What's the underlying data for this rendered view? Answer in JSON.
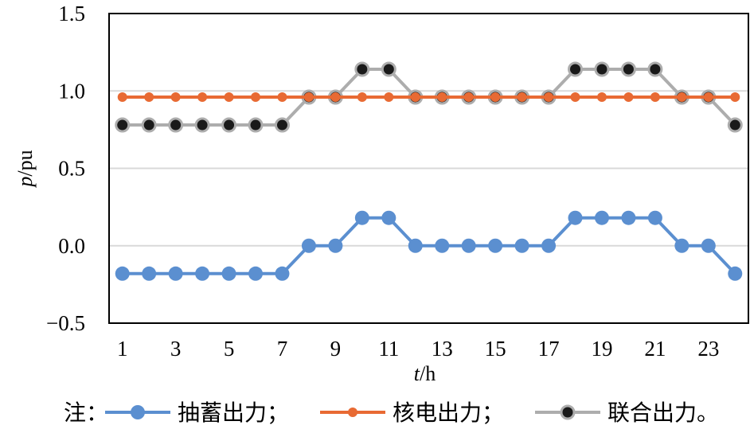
{
  "chart_data": {
    "type": "line",
    "xlabel_italic": "t",
    "xlabel_rest": "/h",
    "ylabel_italic": "p",
    "ylabel_rest": "/pu",
    "ylim": [
      -0.5,
      1.5
    ],
    "yticks": [
      "-0.5",
      "0.0",
      "0.5",
      "1.0",
      "1.5"
    ],
    "ytick_values": [
      -0.5,
      0,
      0.5,
      1,
      1.5
    ],
    "x": [
      1,
      2,
      3,
      4,
      5,
      6,
      7,
      8,
      9,
      10,
      11,
      12,
      13,
      14,
      15,
      16,
      17,
      18,
      19,
      20,
      21,
      22,
      23,
      24
    ],
    "xtick_labels": [
      "1",
      "3",
      "5",
      "7",
      "9",
      "11",
      "13",
      "15",
      "17",
      "19",
      "21",
      "23"
    ],
    "xtick_values": [
      1,
      3,
      5,
      7,
      9,
      11,
      13,
      15,
      17,
      19,
      21,
      23
    ],
    "grid": true,
    "legend_placement": "bottom",
    "legend_prefix": "注：",
    "series": [
      {
        "name": "抽蓄出力；",
        "color": "#5B8FD0",
        "marker": "#5B8FD0",
        "values": [
          -0.18,
          -0.18,
          -0.18,
          -0.18,
          -0.18,
          -0.18,
          -0.18,
          0,
          0,
          0.18,
          0.18,
          0,
          0,
          0,
          0,
          0,
          0,
          0.18,
          0.18,
          0.18,
          0.18,
          0,
          0,
          -0.18
        ]
      },
      {
        "name": "核电出力；",
        "color": "#E86A33",
        "marker": "#E86A33",
        "values": [
          0.96,
          0.96,
          0.96,
          0.96,
          0.96,
          0.96,
          0.96,
          0.96,
          0.96,
          0.96,
          0.96,
          0.96,
          0.96,
          0.96,
          0.96,
          0.96,
          0.96,
          0.96,
          0.96,
          0.96,
          0.96,
          0.96,
          0.96,
          0.96
        ]
      },
      {
        "name": "联合出力。",
        "color": "#ADADAD",
        "marker": "#1A1A1A",
        "values": [
          0.78,
          0.78,
          0.78,
          0.78,
          0.78,
          0.78,
          0.78,
          0.96,
          0.96,
          1.14,
          1.14,
          0.96,
          0.96,
          0.96,
          0.96,
          0.96,
          0.96,
          1.14,
          1.14,
          1.14,
          1.14,
          0.96,
          0.96,
          0.78
        ]
      }
    ]
  }
}
